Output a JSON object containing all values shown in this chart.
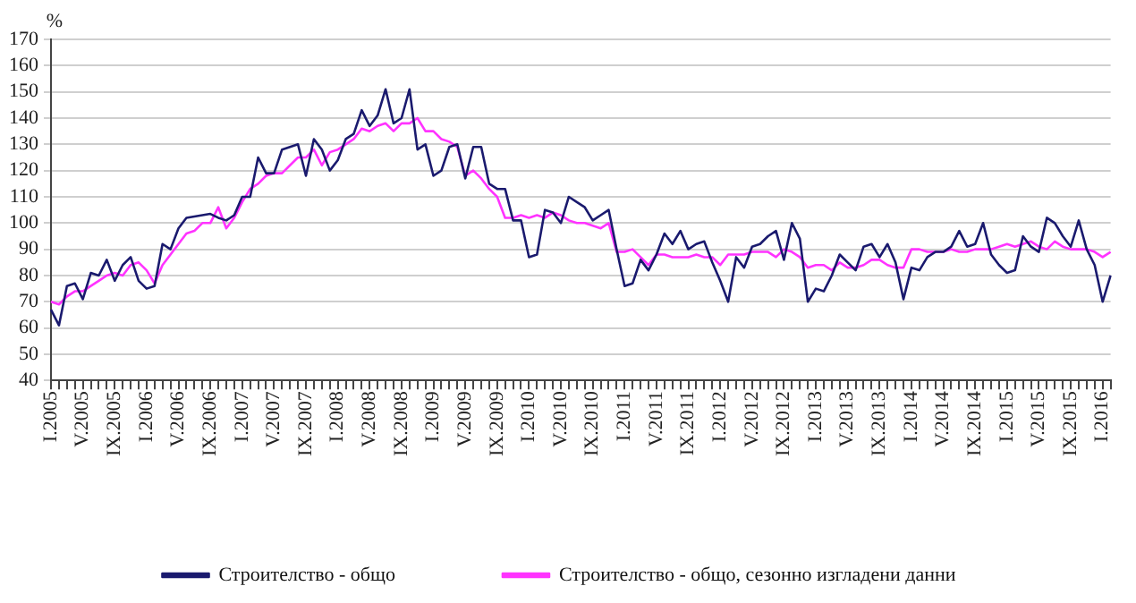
{
  "chart_data": {
    "type": "line",
    "ylabel": "%",
    "categories": [
      "I.2005",
      null,
      null,
      null,
      "V.2005",
      null,
      null,
      null,
      "IX.2005",
      null,
      null,
      null,
      "I.2006",
      null,
      null,
      null,
      "V.2006",
      null,
      null,
      null,
      "IX.2006",
      null,
      null,
      null,
      "I.2007",
      null,
      null,
      null,
      "V.2007",
      null,
      null,
      null,
      "IX.2007",
      null,
      null,
      null,
      "I.2008",
      null,
      null,
      null,
      "V.2008",
      null,
      null,
      null,
      "IX.2008",
      null,
      null,
      null,
      "I.2009",
      null,
      null,
      null,
      "V.2009",
      null,
      null,
      null,
      "IX.2009",
      null,
      null,
      null,
      "I.2010",
      null,
      null,
      null,
      "V.2010",
      null,
      null,
      null,
      "IX.2010",
      null,
      null,
      null,
      "I.2011",
      null,
      null,
      null,
      "V.2011",
      null,
      null,
      null,
      "IX.2011",
      null,
      null,
      null,
      "I.2012",
      null,
      null,
      null,
      "V.2012",
      null,
      null,
      null,
      "IX.2012",
      null,
      null,
      null,
      "I.2013",
      null,
      null,
      null,
      "V.2013",
      null,
      null,
      null,
      "IX.2013",
      null,
      null,
      null,
      "I.2014",
      null,
      null,
      null,
      "V.2014",
      null,
      null,
      null,
      "IX.2014",
      null,
      null,
      null,
      "I.2015",
      null,
      null,
      null,
      "V.2015",
      null,
      null,
      null,
      "IX.2015",
      null,
      null,
      null,
      "I.2016",
      null
    ],
    "series": [
      {
        "name": "Строителство - общо",
        "color": "#1a1a6e",
        "values": [
          67,
          61,
          76,
          77,
          71,
          81,
          80,
          86,
          78,
          84,
          87,
          78,
          75,
          76,
          92,
          90,
          98,
          102,
          102.5,
          103,
          103.5,
          102,
          101,
          103,
          110,
          110,
          125,
          119,
          119,
          128,
          129,
          130,
          118,
          132,
          128,
          120,
          124,
          132,
          134,
          143,
          137,
          141,
          151,
          138,
          140,
          151,
          128,
          130,
          118,
          120,
          129,
          130,
          117,
          129,
          129,
          115,
          113,
          113,
          101,
          101,
          87,
          88,
          105,
          104,
          100,
          110,
          108,
          106,
          101,
          103,
          105,
          90,
          76,
          77,
          86,
          82,
          88,
          96,
          92,
          97,
          90,
          92,
          93,
          85,
          78,
          70,
          87,
          83,
          91,
          92,
          95,
          97,
          86,
          100,
          94,
          70,
          75,
          74,
          80,
          88,
          85,
          82,
          91,
          92,
          87,
          92,
          85,
          71,
          83,
          82,
          87,
          89,
          89,
          91,
          97,
          91,
          92,
          100,
          88,
          84,
          81,
          82,
          95,
          91,
          89,
          102,
          100,
          95,
          91,
          101,
          90,
          84,
          70,
          80
        ]
      },
      {
        "name": "Строителство - общо, сезонно изгладени данни",
        "color": "#ff33ff",
        "values": [
          70,
          69,
          72,
          74,
          74,
          76,
          78,
          80,
          81,
          80,
          84,
          85,
          82,
          77,
          84,
          88,
          92,
          96,
          97,
          100,
          100,
          106,
          98,
          102,
          108,
          113,
          115,
          118,
          119,
          119,
          122,
          125,
          125,
          128,
          122,
          127,
          128,
          130,
          132,
          136,
          135,
          137,
          138,
          135,
          138,
          138,
          140,
          135,
          135,
          132,
          131,
          129,
          118,
          120,
          117,
          113,
          110,
          102,
          102,
          103,
          102,
          103,
          102,
          104,
          103,
          101,
          100,
          100,
          99,
          98,
          100,
          89,
          89,
          90,
          87,
          84,
          88,
          88,
          87,
          87,
          87,
          88,
          87,
          87,
          84,
          88,
          88,
          88,
          89,
          89,
          89,
          87,
          90,
          89,
          87,
          83,
          84,
          84,
          82,
          85,
          83,
          83,
          84,
          86,
          86,
          84,
          83,
          83,
          90,
          90,
          89,
          89,
          89,
          90,
          89,
          89,
          90,
          90,
          90,
          91,
          92,
          91,
          92,
          93,
          91,
          90,
          93,
          91,
          90,
          90,
          90,
          89,
          87,
          89
        ]
      }
    ],
    "ylim": [
      40,
      170
    ],
    "yticks": [
      40,
      50,
      60,
      70,
      80,
      90,
      100,
      110,
      120,
      130,
      140,
      150,
      160,
      170
    ],
    "grid": "y",
    "legend": "bottom",
    "marker": "none",
    "line_style": "solid"
  }
}
